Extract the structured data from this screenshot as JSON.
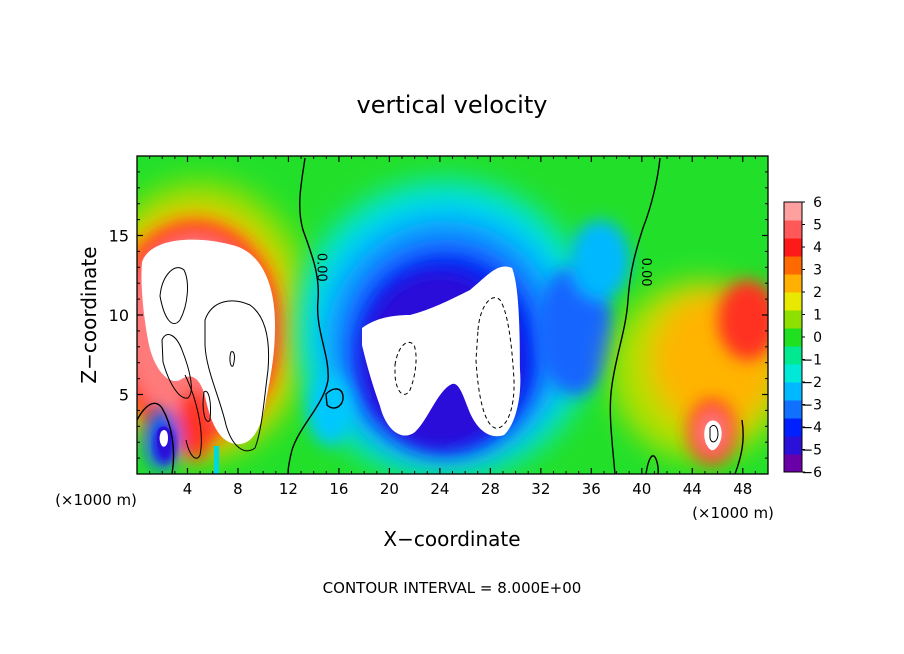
{
  "chart_data": {
    "type": "heatmap",
    "title": "vertical velocity",
    "xlabel": "X−coordinate",
    "ylabel": "Z−coordinate",
    "x_unit_left": "(×1000 m)",
    "x_unit_right": "(×1000 m)",
    "footer": "CONTOUR INTERVAL = 8.000E+00",
    "xlim": [
      0,
      50
    ],
    "ylim": [
      0,
      20
    ],
    "x_ticks": [
      4,
      8,
      12,
      16,
      20,
      24,
      28,
      32,
      36,
      40,
      44,
      48
    ],
    "x_tick_labels": [
      "4",
      "8",
      "12",
      "16",
      "20",
      "24",
      "28",
      "32",
      "36",
      "40",
      "44",
      "48"
    ],
    "y_ticks": [
      5,
      10,
      15
    ],
    "y_tick_labels": [
      "5",
      "10",
      "15"
    ],
    "contour_labels": [
      {
        "text": "0.00",
        "x": 14.0,
        "z": 13.0
      },
      {
        "text": "0.00",
        "x": 39.7,
        "z": 12.7
      }
    ],
    "colorbar": {
      "min": -6,
      "max": 6,
      "labels": [
        "6",
        "5",
        "4",
        "3",
        "2",
        "1",
        "0",
        "−1",
        "−2",
        "−3",
        "−4",
        "−5",
        "−6"
      ],
      "colors": [
        "#6a00a8",
        "#2a10d8",
        "#0020ff",
        "#1070ff",
        "#00b8ff",
        "#00e8d8",
        "#00e890",
        "#20e020",
        "#8ee000",
        "#e8e800",
        "#ffb000",
        "#ff6a00",
        "#ff1a1a",
        "#ff5858",
        "#ffa0a0"
      ]
    },
    "features": [
      {
        "label": "updraft core (>6)",
        "x_range": [
          1,
          10
        ],
        "z_range": [
          2,
          14
        ],
        "sign": "positive"
      },
      {
        "label": "downdraft core (<-6)",
        "x_range": [
          18,
          30
        ],
        "z_range": [
          2,
          13
        ],
        "sign": "negative"
      },
      {
        "label": "updraft cell",
        "x_range": [
          44,
          47
        ],
        "z_range": [
          1,
          4
        ],
        "sign": "positive"
      }
    ]
  }
}
